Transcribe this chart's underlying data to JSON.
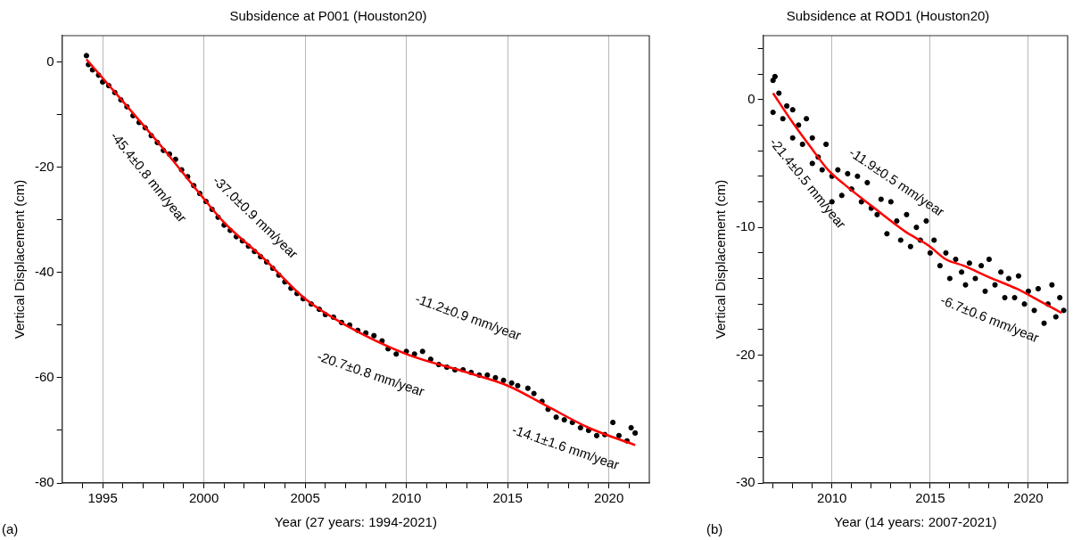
{
  "chart_data": [
    {
      "type": "scatter",
      "title": "Subsidence at P001 (Houston20)",
      "xlabel": "Year (27 years: 1994-2021)",
      "ylabel": "Vertical Displacement (cm)",
      "xlim": [
        1993,
        2022
      ],
      "ylim": [
        -80,
        5
      ],
      "xticks": [
        {
          "value": 1994,
          "label": null
        },
        1995,
        {
          "value": 1996,
          "label": null
        },
        {
          "value": 1997,
          "label": null
        },
        {
          "value": 1998,
          "label": null
        },
        {
          "value": 1999,
          "label": null
        },
        2000,
        {
          "value": 2001,
          "label": null
        },
        {
          "value": 2002,
          "label": null
        },
        {
          "value": 2003,
          "label": null
        },
        {
          "value": 2004,
          "label": null
        },
        2005,
        {
          "value": 2006,
          "label": null
        },
        {
          "value": 2007,
          "label": null
        },
        {
          "value": 2008,
          "label": null
        },
        {
          "value": 2009,
          "label": null
        },
        2010,
        {
          "value": 2011,
          "label": null
        },
        {
          "value": 2012,
          "label": null
        },
        {
          "value": 2013,
          "label": null
        },
        {
          "value": 2014,
          "label": null
        },
        2015,
        {
          "value": 2016,
          "label": null
        },
        {
          "value": 2017,
          "label": null
        },
        {
          "value": 2018,
          "label": null
        },
        {
          "value": 2019,
          "label": null
        },
        2020,
        {
          "value": 2021,
          "label": null
        }
      ],
      "yticks": [
        -80,
        {
          "value": -70,
          "label": null
        },
        -60,
        {
          "value": -50,
          "label": null
        },
        -40,
        {
          "value": -30,
          "label": null
        },
        -20,
        {
          "value": -10,
          "label": null
        },
        0
      ],
      "grid": "x",
      "series": [
        {
          "marker": "circle",
          "color": "#000000",
          "x": [
            1994.2,
            1994.3,
            1994.5,
            1994.8,
            1995.0,
            1995.3,
            1995.6,
            1995.9,
            1996.2,
            1996.5,
            1996.8,
            1997.1,
            1997.4,
            1997.7,
            1998.0,
            1998.3,
            1998.6,
            1998.9,
            1999.2,
            1999.5,
            1999.8,
            2000.1,
            2000.4,
            2000.7,
            2001.0,
            2001.3,
            2001.6,
            2001.9,
            2002.2,
            2002.5,
            2002.8,
            2003.1,
            2003.4,
            2003.7,
            2004.0,
            2004.3,
            2004.6,
            2004.9,
            2005.3,
            2005.7,
            2006.0,
            2006.4,
            2006.8,
            2007.2,
            2007.6,
            2008.0,
            2008.4,
            2008.8,
            2009.1,
            2009.5,
            2010.0,
            2010.4,
            2010.8,
            2011.2,
            2011.6,
            2012.0,
            2012.4,
            2012.8,
            2013.2,
            2013.6,
            2014.0,
            2014.4,
            2014.8,
            2015.2,
            2015.5,
            2016.0,
            2016.3,
            2016.7,
            2017.0,
            2017.4,
            2017.8,
            2018.2,
            2018.6,
            2019.0,
            2019.4,
            2019.8,
            2020.2,
            2020.5,
            2020.9,
            2021.1,
            2021.3
          ],
          "values": [
            1.2,
            -0.5,
            -1.5,
            -2.5,
            -3.8,
            -4.5,
            -5.8,
            -7.2,
            -8.5,
            -10.2,
            -11.5,
            -12.5,
            -14.0,
            -15.3,
            -16.8,
            -17.5,
            -18.5,
            -20.5,
            -21.8,
            -23.5,
            -25.0,
            -26.5,
            -28.0,
            -29.5,
            -31.0,
            -32.0,
            -33.2,
            -34.0,
            -35.0,
            -36.0,
            -37.0,
            -38.0,
            -39.2,
            -40.5,
            -41.8,
            -43.0,
            -44.0,
            -45.0,
            -46.0,
            -47.0,
            -48.0,
            -48.5,
            -49.5,
            -50.0,
            -51.0,
            -51.5,
            -52.0,
            -53.0,
            -54.5,
            -55.5,
            -55.0,
            -55.5,
            -55.0,
            -56.5,
            -57.5,
            -58.0,
            -58.5,
            -58.5,
            -59.0,
            -59.5,
            -59.5,
            -60.0,
            -60.5,
            -61.0,
            -61.5,
            -62.0,
            -63.0,
            -64.5,
            -66.0,
            -67.5,
            -68.0,
            -68.5,
            -69.5,
            -70.0,
            -71.0,
            -70.8,
            -68.5,
            -71.0,
            -72.0,
            -69.5,
            -70.5
          ]
        },
        {
          "type": "line",
          "marker": "none",
          "color": "#ff0000",
          "x": [
            1994.2,
            1996,
            1998,
            2000,
            2001,
            2003,
            2005,
            2007,
            2010,
            2013,
            2015,
            2017,
            2019,
            2021.3
          ],
          "values": [
            0.5,
            -7.5,
            -16.5,
            -26,
            -30.5,
            -37.5,
            -45,
            -50,
            -55.5,
            -59,
            -61.5,
            -65.5,
            -69.5,
            -72.8
          ]
        }
      ],
      "annotations": [
        "-45.4±0.8 mm/year",
        "-37.0±0.9 mm/year",
        "-20.7±0.8 mm/year",
        "-11.2±0.9 mm/year",
        "-14.1±1.6 mm/year",
        "(a)"
      ]
    },
    {
      "type": "scatter",
      "title": "Subsidence at ROD1 (Houston20)",
      "xlabel": "Year (14 years: 2007-2021)",
      "ylabel": "Vertical Displacement (cm)",
      "xlim": [
        2006.5,
        2022
      ],
      "ylim": [
        -30,
        5
      ],
      "xticks": [
        {
          "value": 2007,
          "label": null
        },
        {
          "value": 2008,
          "label": null
        },
        {
          "value": 2009,
          "label": null
        },
        2010,
        {
          "value": 2011,
          "label": null
        },
        {
          "value": 2012,
          "label": null
        },
        {
          "value": 2013,
          "label": null
        },
        {
          "value": 2014,
          "label": null
        },
        2015,
        {
          "value": 2016,
          "label": null
        },
        {
          "value": 2017,
          "label": null
        },
        {
          "value": 2018,
          "label": null
        },
        {
          "value": 2019,
          "label": null
        },
        2020,
        {
          "value": 2021,
          "label": null
        }
      ],
      "yticks": [
        -30,
        {
          "value": -28,
          "label": null
        },
        {
          "value": -26,
          "label": null
        },
        {
          "value": -24,
          "label": null
        },
        {
          "value": -22,
          "label": null
        },
        -20,
        {
          "value": -18,
          "label": null
        },
        {
          "value": -16,
          "label": null
        },
        {
          "value": -14,
          "label": null
        },
        {
          "value": -12,
          "label": null
        },
        -10,
        {
          "value": -8,
          "label": null
        },
        {
          "value": -6,
          "label": null
        },
        {
          "value": -4,
          "label": null
        },
        {
          "value": -2,
          "label": null
        },
        0,
        {
          "value": 2,
          "label": null
        },
        {
          "value": 4,
          "label": null
        }
      ],
      "grid": "x",
      "series": [
        {
          "marker": "circle",
          "color": "#000000",
          "x": [
            2007.0,
            2007.0,
            2007.1,
            2007.3,
            2007.5,
            2007.7,
            2008.0,
            2008.0,
            2008.3,
            2008.5,
            2008.7,
            2009.0,
            2009.0,
            2009.3,
            2009.5,
            2009.7,
            2010.0,
            2010.0,
            2010.3,
            2010.5,
            2010.8,
            2011.0,
            2011.3,
            2011.5,
            2011.8,
            2012.0,
            2012.3,
            2012.5,
            2012.8,
            2013.0,
            2013.3,
            2013.5,
            2013.8,
            2014.0,
            2014.3,
            2014.5,
            2014.8,
            2015.0,
            2015.2,
            2015.5,
            2015.8,
            2016.0,
            2016.3,
            2016.6,
            2016.8,
            2017.0,
            2017.3,
            2017.6,
            2017.8,
            2018.0,
            2018.3,
            2018.6,
            2018.8,
            2019.0,
            2019.3,
            2019.5,
            2019.8,
            2020.0,
            2020.3,
            2020.5,
            2020.8,
            2021.0,
            2021.2,
            2021.4,
            2021.6,
            2021.8
          ],
          "values": [
            1.5,
            -1.0,
            1.8,
            0.5,
            -1.5,
            -0.5,
            -0.8,
            -3.0,
            -2.0,
            -3.5,
            -1.5,
            -3.0,
            -5.0,
            -4.5,
            -5.5,
            -3.5,
            -6.0,
            -8.0,
            -5.5,
            -7.5,
            -5.8,
            -7.0,
            -6.0,
            -8.0,
            -6.5,
            -8.5,
            -9.0,
            -7.8,
            -10.5,
            -8.0,
            -9.5,
            -11.0,
            -9.0,
            -11.5,
            -10.0,
            -11.0,
            -9.5,
            -12.0,
            -11.0,
            -13.0,
            -12.0,
            -14.0,
            -12.5,
            -13.5,
            -14.5,
            -12.8,
            -14.0,
            -13.0,
            -15.0,
            -12.5,
            -14.5,
            -13.5,
            -15.5,
            -14.0,
            -15.5,
            -13.8,
            -16.0,
            -15.0,
            -16.5,
            -14.8,
            -17.5,
            -16.0,
            -14.5,
            -17.0,
            -15.5,
            -16.5
          ]
        },
        {
          "type": "line",
          "marker": "none",
          "color": "#ff0000",
          "x": [
            2007,
            2008,
            2009,
            2009.8,
            2010.6,
            2012,
            2013.8,
            2014.9,
            2015.8,
            2016.7,
            2018,
            2019.4,
            2020.5,
            2021.7
          ],
          "values": [
            0.5,
            -1.8,
            -3.9,
            -5.5,
            -6.6,
            -8.3,
            -10.4,
            -11.4,
            -12.5,
            -13.0,
            -13.9,
            -14.8,
            -15.7,
            -16.7
          ]
        }
      ],
      "annotations": [
        "-21.4±0.5 mm/year",
        "-11.9±0.5 mm/year",
        "-6.7±0.6 mm/year",
        "(b)"
      ]
    }
  ]
}
